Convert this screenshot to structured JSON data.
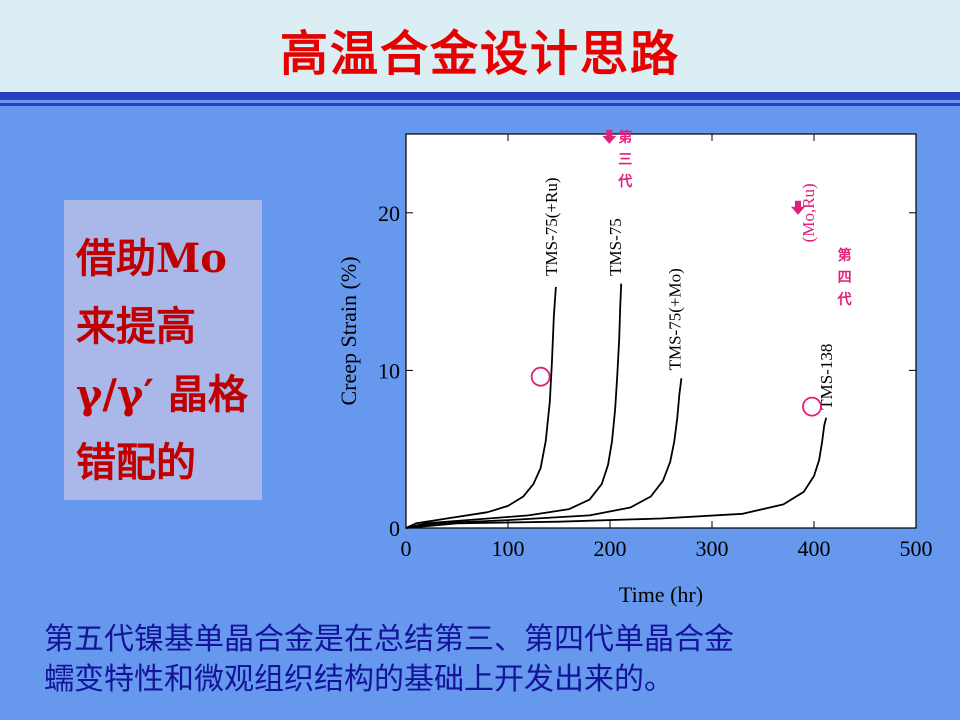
{
  "slide": {
    "title": "高温合金设计思路",
    "side_lines": [
      "借助Mo",
      "来提高",
      "γ/γ′ 晶格",
      "错配的"
    ],
    "footer_lines": [
      "第五代镍基单晶合金是在总结第三、第四代单晶合金",
      "蠕变特性和微观组织结构的基础上开发出来的。"
    ],
    "colors": {
      "background": "#6699ee",
      "header": "#dbeef4",
      "title": "#e60000",
      "accent_line": "#2a3fbf",
      "annotation": "#e0207a"
    }
  },
  "chart_data": {
    "type": "line",
    "xlabel": "Time (hr)",
    "ylabel": "Creep Strain (%)",
    "xlim": [
      0,
      500
    ],
    "ylim": [
      0,
      25
    ],
    "xticks": [
      0,
      100,
      200,
      300,
      400,
      500
    ],
    "yticks": [
      0,
      10,
      20
    ],
    "grid": false,
    "series": [
      {
        "name": "TMS-75(+Ru)",
        "x": [
          0,
          10,
          40,
          80,
          100,
          115,
          125,
          132,
          137,
          141,
          143,
          145,
          147
        ],
        "y": [
          0,
          0.3,
          0.6,
          1.0,
          1.4,
          2.0,
          2.8,
          3.8,
          5.5,
          8.0,
          10.5,
          13.5,
          15.3
        ]
      },
      {
        "name": "TMS-75",
        "x": [
          0,
          20,
          60,
          120,
          160,
          180,
          192,
          198,
          202,
          205,
          207,
          209,
          210,
          211
        ],
        "y": [
          0,
          0.3,
          0.5,
          0.8,
          1.2,
          1.8,
          2.8,
          4.0,
          5.5,
          7.5,
          9.5,
          12.0,
          14.0,
          15.5
        ]
      },
      {
        "name": "TMS-75(+Mo)",
        "x": [
          0,
          30,
          100,
          180,
          220,
          240,
          252,
          259,
          263,
          266,
          268,
          270
        ],
        "y": [
          0,
          0.3,
          0.5,
          0.8,
          1.3,
          2.0,
          3.0,
          4.2,
          5.5,
          7.0,
          8.5,
          9.5
        ]
      },
      {
        "name": "TMS-138",
        "x": [
          0,
          50,
          150,
          250,
          330,
          370,
          390,
          400,
          405,
          408,
          410,
          412
        ],
        "y": [
          0,
          0.3,
          0.4,
          0.6,
          0.9,
          1.5,
          2.3,
          3.3,
          4.3,
          5.5,
          6.5,
          7.0
        ]
      }
    ],
    "series_labels": [
      {
        "text": "TMS-75(+Ru)",
        "x": 142,
        "y": 16.0
      },
      {
        "text": "TMS-75",
        "x": 205,
        "y": 16.0
      },
      {
        "text": "TMS-75(+Mo)",
        "x": 263,
        "y": 10.0
      },
      {
        "text": "TMS-138",
        "x": 412,
        "y": 7.5
      }
    ],
    "markers": [
      {
        "type": "circle",
        "x": 132,
        "y": 9.6
      },
      {
        "type": "circle",
        "x": 398,
        "y": 7.7
      }
    ],
    "annotations": [
      {
        "text": "第三代",
        "x": 215,
        "y": 24.5,
        "arrow": true
      },
      {
        "text": "(Mo,Ru)",
        "x": 400,
        "y": 20.0,
        "arrow": true
      },
      {
        "text": "第四代",
        "x": 430,
        "y": 17.0
      }
    ]
  }
}
